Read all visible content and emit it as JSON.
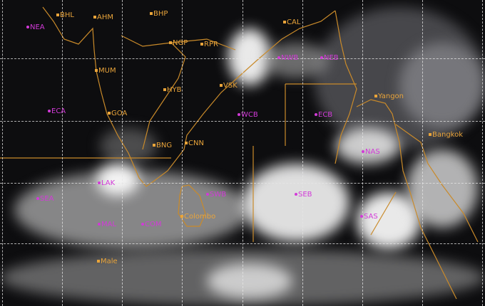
{
  "colors": {
    "city": "#e9a43a",
    "region": "#d23ad8",
    "boundary": "#c98a2a",
    "grid": "#e6e6e6"
  },
  "cities": [
    {
      "name": "BHL"
    },
    {
      "name": "AHM"
    },
    {
      "name": "BHP"
    },
    {
      "name": "NGP"
    },
    {
      "name": "RPR"
    },
    {
      "name": "MUM"
    },
    {
      "name": "HYB"
    },
    {
      "name": "VSK"
    },
    {
      "name": "GOA"
    },
    {
      "name": "BNG"
    },
    {
      "name": "CNN"
    },
    {
      "name": "CAL"
    },
    {
      "name": "Yangon"
    },
    {
      "name": "Bangkok"
    },
    {
      "name": "Colombo"
    },
    {
      "name": "Male"
    }
  ],
  "regions": [
    {
      "name": "NEA"
    },
    {
      "name": "ECA"
    },
    {
      "name": "WCB"
    },
    {
      "name": "ECB"
    },
    {
      "name": "NWB"
    },
    {
      "name": "NEB"
    },
    {
      "name": "NAS"
    },
    {
      "name": "LAK"
    },
    {
      "name": "SEA"
    },
    {
      "name": "MAL"
    },
    {
      "name": "COM"
    },
    {
      "name": "SWB"
    },
    {
      "name": "SEB"
    },
    {
      "name": "SAS"
    }
  ]
}
